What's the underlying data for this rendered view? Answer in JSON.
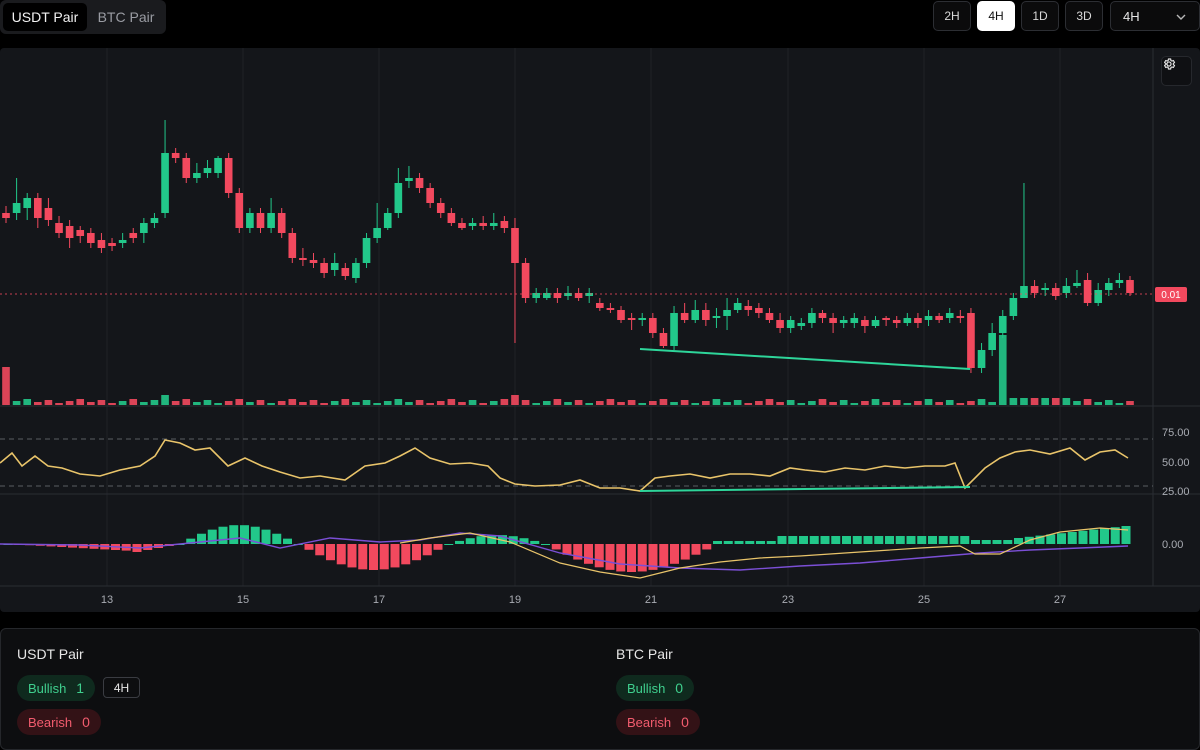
{
  "pair_tabs": [
    {
      "label": "USDT Pair",
      "active": true
    },
    {
      "label": "BTC Pair",
      "active": false
    }
  ],
  "timeframes": [
    {
      "label": "2H",
      "active": false
    },
    {
      "label": "4H",
      "active": true
    },
    {
      "label": "1D",
      "active": false
    },
    {
      "label": "3D",
      "active": false
    }
  ],
  "timeframe_select": {
    "value": "4H"
  },
  "chart": {
    "price_label": "0.01",
    "x_ticks": [
      "13",
      "15",
      "17",
      "19",
      "21",
      "23",
      "25",
      "27"
    ],
    "rsi_ticks": [
      "75.00",
      "50.00",
      "25.00"
    ],
    "macd_ticks": [
      "0.00"
    ],
    "colors": {
      "up": "#22c88a",
      "down": "#f2495e",
      "rsi": "#e9c46a",
      "signal": "#7b4fd6",
      "divergence": "#2ed59a"
    }
  },
  "chart_data": {
    "type": "candlestick",
    "interval": "4H",
    "x_tick_labels": [
      "13",
      "15",
      "17",
      "19",
      "21",
      "23",
      "25",
      "27"
    ],
    "rsi_levels": [
      75,
      50,
      25
    ],
    "last_price_label": "0.01"
  },
  "signals": [
    {
      "title": "USDT Pair",
      "bullish_label": "Bullish",
      "bullish_count": "1",
      "bearish_label": "Bearish",
      "bearish_count": "0",
      "timeframe": "4H"
    },
    {
      "title": "BTC Pair",
      "bullish_label": "Bullish",
      "bullish_count": "0",
      "bearish_label": "Bearish",
      "bearish_count": "0",
      "timeframe": ""
    }
  ]
}
